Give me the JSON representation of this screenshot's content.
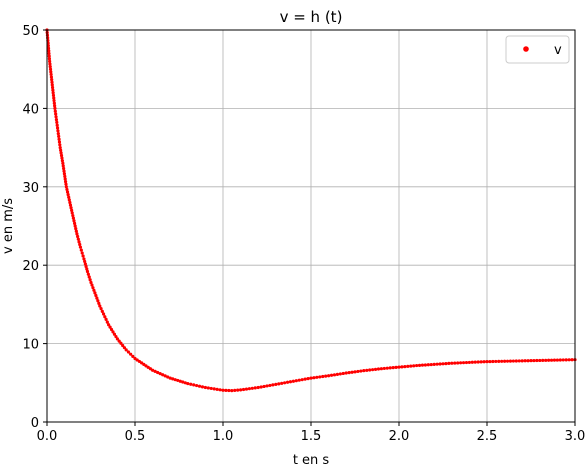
{
  "chart_data": {
    "type": "scatter",
    "title": "v = h (t)",
    "xlabel": "t en s",
    "ylabel": "v en m/s",
    "xlim": [
      0,
      3
    ],
    "ylim": [
      0,
      50
    ],
    "xticks": [
      0,
      0.5,
      1,
      1.5,
      2,
      2.5,
      3
    ],
    "xtick_labels": [
      "0.0",
      "0.5",
      "1.0",
      "1.5",
      "2.0",
      "2.5",
      "3.0"
    ],
    "yticks": [
      0,
      10,
      20,
      30,
      40,
      50
    ],
    "ytick_labels": [
      "0",
      "10",
      "20",
      "30",
      "40",
      "50"
    ],
    "grid": true,
    "legend": "top-right",
    "series": [
      {
        "name": "v",
        "color": "#ff0000",
        "marker": "dot",
        "x": [
          0,
          0.015,
          0.03,
          0.045,
          0.06,
          0.075,
          0.09,
          0.11,
          0.13,
          0.15,
          0.17,
          0.19,
          0.21,
          0.23,
          0.25,
          0.3,
          0.35,
          0.4,
          0.45,
          0.5,
          0.6,
          0.7,
          0.8,
          0.9,
          1.0,
          1.05,
          1.1,
          1.2,
          1.3,
          1.4,
          1.5,
          1.6,
          1.7,
          1.8,
          1.9,
          2.0,
          2.1,
          2.2,
          2.3,
          2.4,
          2.5,
          2.6,
          2.7,
          2.8,
          2.9,
          3.0
        ],
        "y": [
          50,
          46,
          43,
          40,
          37.5,
          35,
          33,
          30,
          28,
          26,
          24,
          22.3,
          20.8,
          19.2,
          17.8,
          14.8,
          12.4,
          10.6,
          9.2,
          8.1,
          6.6,
          5.6,
          4.9,
          4.4,
          4.05,
          4.0,
          4.1,
          4.4,
          4.8,
          5.2,
          5.6,
          5.9,
          6.25,
          6.55,
          6.8,
          7.0,
          7.2,
          7.35,
          7.5,
          7.6,
          7.7,
          7.75,
          7.8,
          7.85,
          7.9,
          7.95
        ]
      }
    ]
  }
}
